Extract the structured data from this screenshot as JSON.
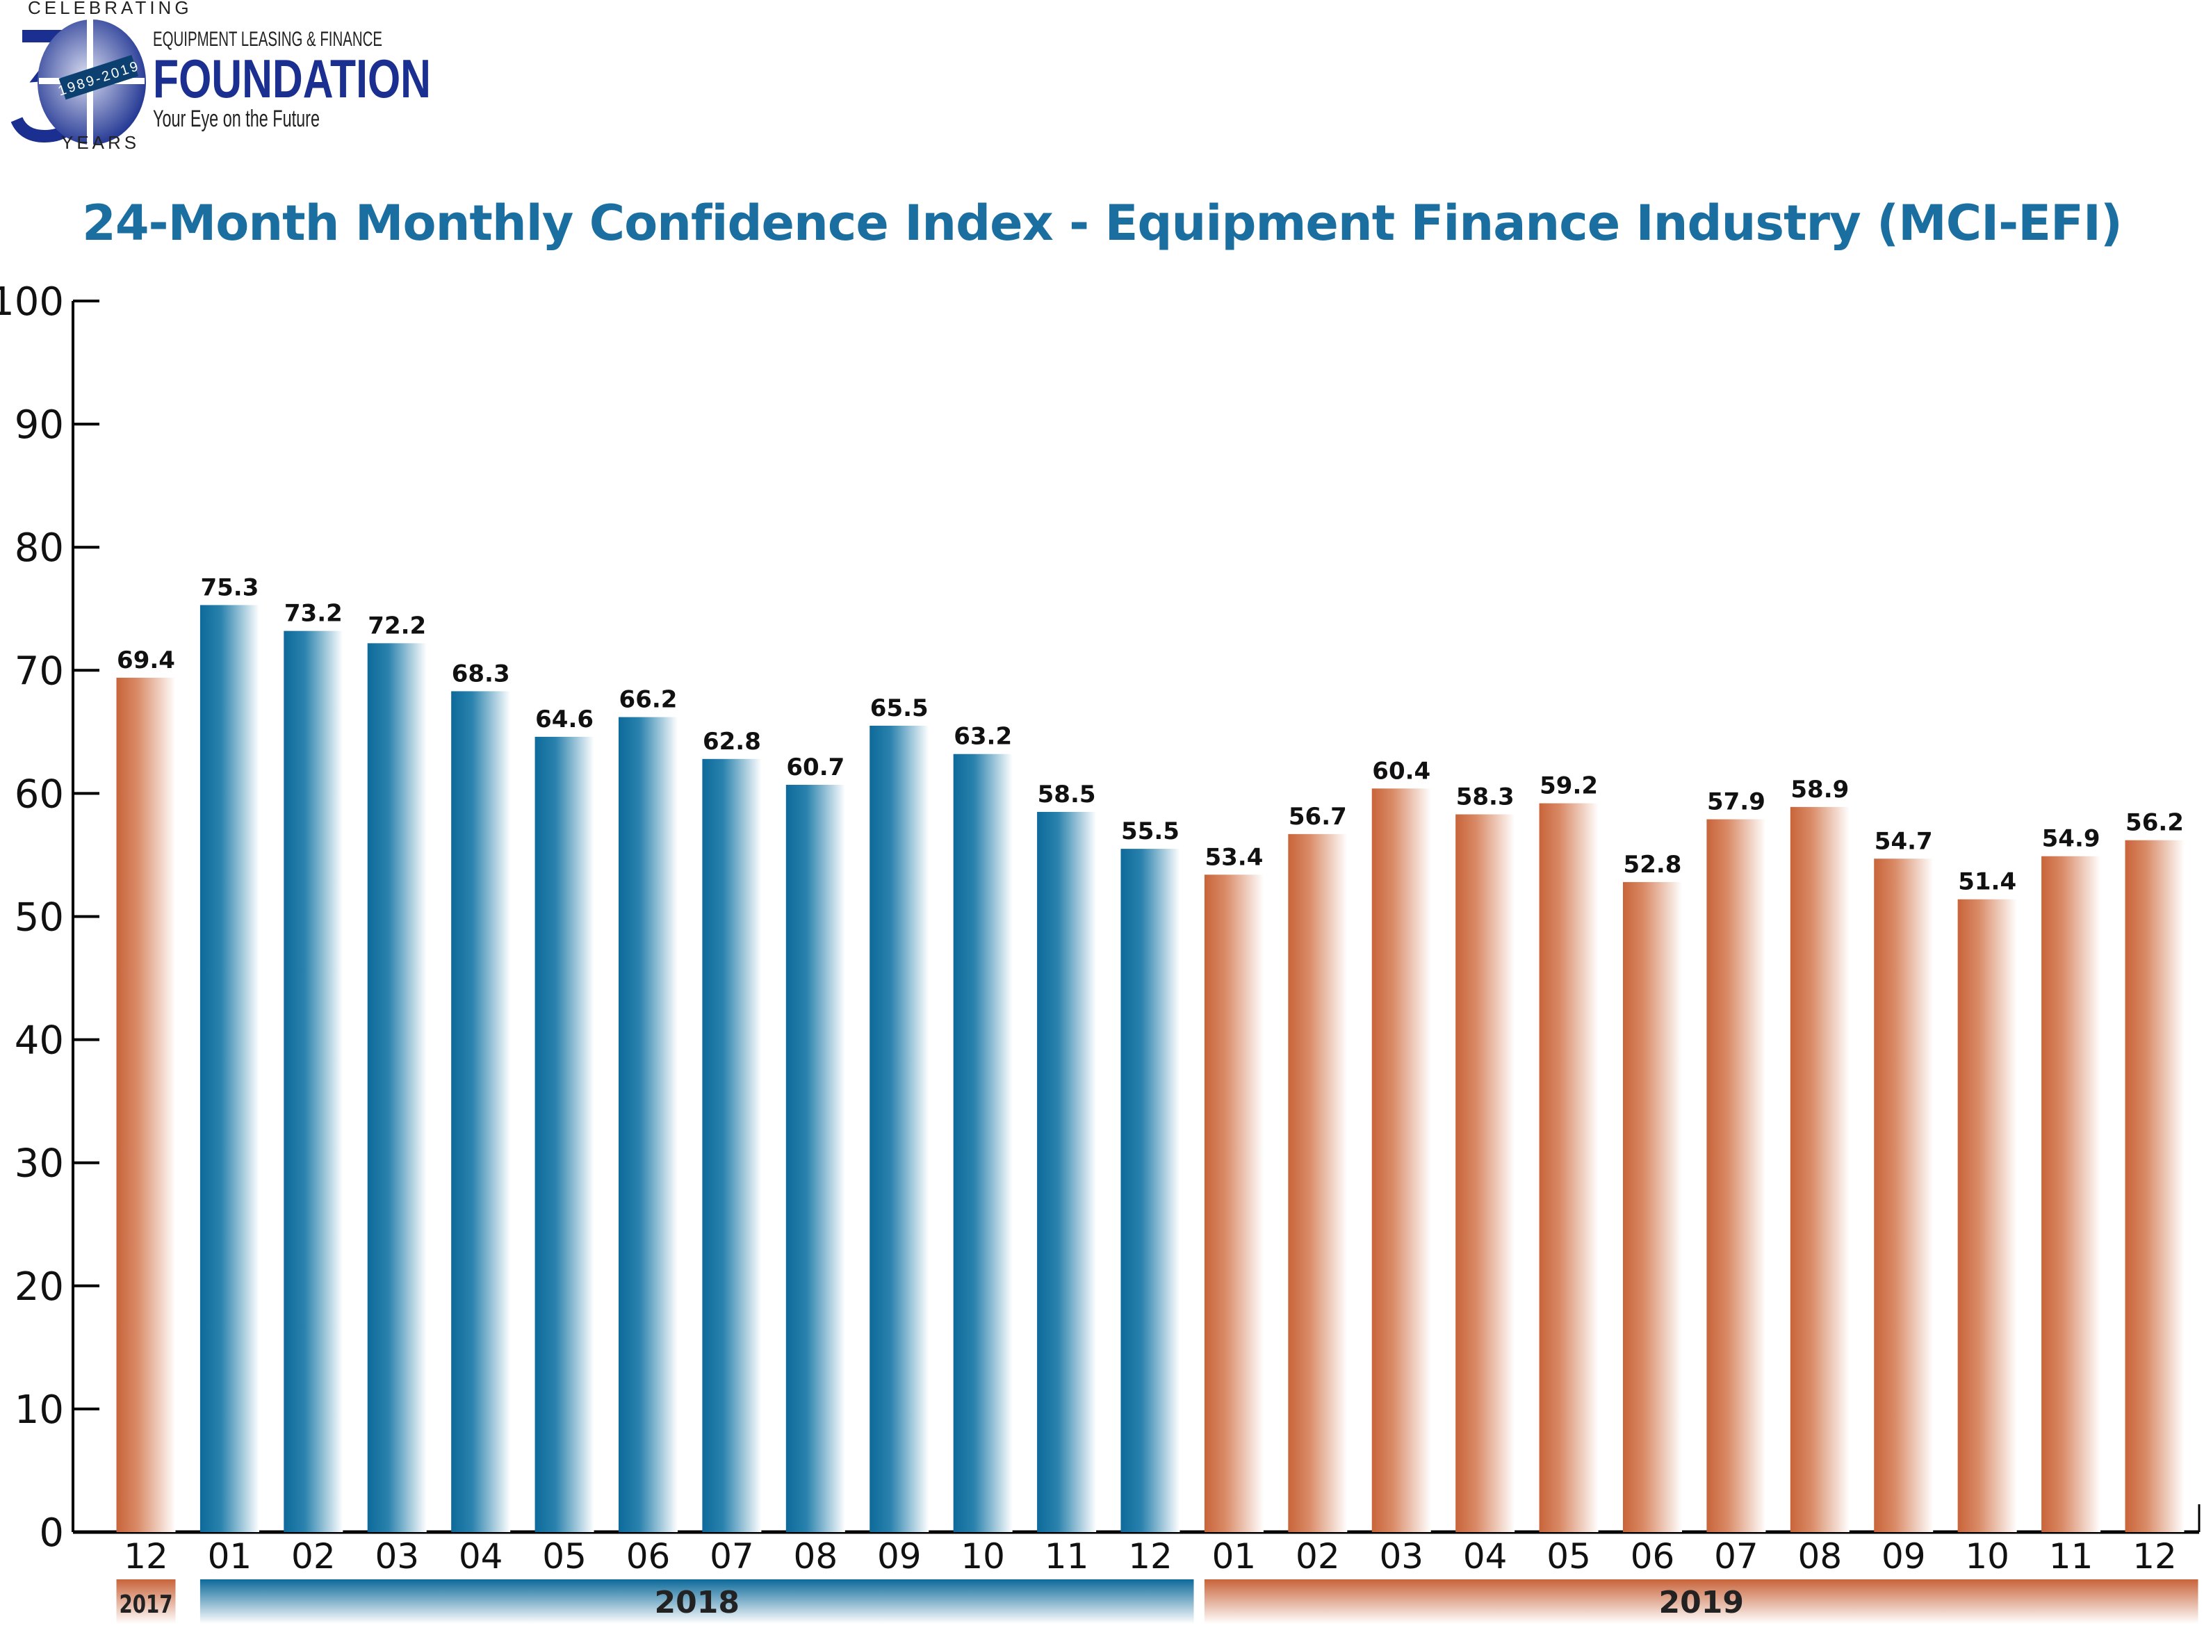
{
  "logo": {
    "celebrating": "CELEBRATING",
    "big_number": "30",
    "years_range": "1989-2019",
    "years": "YEARS",
    "line1": "EQUIPMENT LEASING & FINANCE",
    "line2": "FOUNDATION",
    "tagline": "Your Eye on the Future"
  },
  "chart_data": {
    "type": "bar",
    "title": "24-Month Monthly Confidence Index - Equipment Finance Industry (MCI-EFI)",
    "xlabel": "",
    "ylabel": "",
    "ylim": [
      0,
      100
    ],
    "yticks": [
      0,
      10,
      20,
      30,
      40,
      50,
      60,
      70,
      80,
      90,
      100
    ],
    "grid": false,
    "categories": [
      "12",
      "01",
      "02",
      "03",
      "04",
      "05",
      "06",
      "07",
      "08",
      "09",
      "10",
      "11",
      "12",
      "01",
      "02",
      "03",
      "04",
      "05",
      "06",
      "07",
      "08",
      "09",
      "10",
      "11",
      "12"
    ],
    "years": [
      "2017",
      "2018",
      "2018",
      "2018",
      "2018",
      "2018",
      "2018",
      "2018",
      "2018",
      "2018",
      "2018",
      "2018",
      "2018",
      "2019",
      "2019",
      "2019",
      "2019",
      "2019",
      "2019",
      "2019",
      "2019",
      "2019",
      "2019",
      "2019",
      "2019"
    ],
    "values": [
      69.4,
      75.3,
      73.2,
      72.2,
      68.3,
      64.6,
      66.2,
      62.8,
      60.7,
      65.5,
      63.2,
      58.5,
      55.5,
      53.4,
      56.7,
      60.4,
      58.3,
      59.2,
      52.8,
      57.9,
      58.9,
      54.7,
      51.4,
      54.9,
      56.2
    ],
    "year_groups": [
      {
        "label": "2017",
        "color": "#c8643a"
      },
      {
        "label": "2018",
        "color": "#0d6a9a"
      },
      {
        "label": "2019",
        "color": "#c8643a"
      }
    ]
  }
}
